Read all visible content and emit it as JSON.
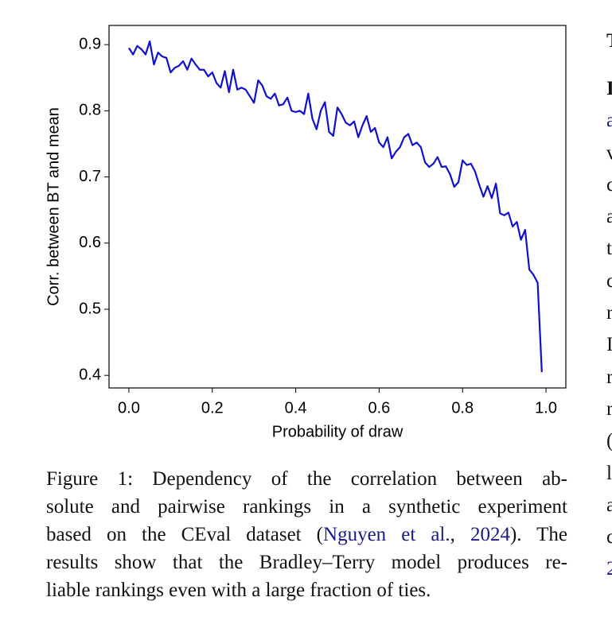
{
  "chart_data": {
    "type": "line",
    "xlabel": "Probability of draw",
    "ylabel": "Corr. between BT and mean",
    "x": [
      0.0,
      0.01,
      0.02,
      0.03,
      0.04,
      0.05,
      0.06,
      0.07,
      0.08,
      0.09,
      0.1,
      0.11,
      0.12,
      0.13,
      0.14,
      0.15,
      0.16,
      0.17,
      0.18,
      0.19,
      0.2,
      0.21,
      0.22,
      0.23,
      0.24,
      0.25,
      0.26,
      0.27,
      0.28,
      0.29,
      0.3,
      0.31,
      0.32,
      0.33,
      0.34,
      0.35,
      0.36,
      0.37,
      0.38,
      0.39,
      0.4,
      0.41,
      0.42,
      0.43,
      0.44,
      0.45,
      0.46,
      0.47,
      0.48,
      0.49,
      0.5,
      0.51,
      0.52,
      0.53,
      0.54,
      0.55,
      0.56,
      0.57,
      0.58,
      0.59,
      0.6,
      0.61,
      0.62,
      0.63,
      0.64,
      0.65,
      0.66,
      0.67,
      0.68,
      0.69,
      0.7,
      0.71,
      0.72,
      0.73,
      0.74,
      0.75,
      0.76,
      0.77,
      0.78,
      0.79,
      0.8,
      0.81,
      0.82,
      0.83,
      0.84,
      0.85,
      0.86,
      0.87,
      0.88,
      0.89,
      0.9,
      0.91,
      0.92,
      0.93,
      0.94,
      0.95,
      0.96,
      0.97,
      0.98,
      0.99
    ],
    "series": [
      {
        "color": "#1010d0",
        "values": [
          0.895,
          0.885,
          0.898,
          0.893,
          0.885,
          0.905,
          0.87,
          0.888,
          0.882,
          0.88,
          0.858,
          0.865,
          0.868,
          0.875,
          0.862,
          0.879,
          0.87,
          0.862,
          0.862,
          0.852,
          0.858,
          0.842,
          0.835,
          0.86,
          0.828,
          0.862,
          0.832,
          0.835,
          0.832,
          0.822,
          0.812,
          0.846,
          0.838,
          0.822,
          0.818,
          0.826,
          0.808,
          0.81,
          0.82,
          0.8,
          0.798,
          0.8,
          0.795,
          0.826,
          0.788,
          0.772,
          0.8,
          0.813,
          0.768,
          0.762,
          0.805,
          0.795,
          0.782,
          0.778,
          0.784,
          0.76,
          0.778,
          0.792,
          0.768,
          0.774,
          0.752,
          0.745,
          0.76,
          0.728,
          0.738,
          0.745,
          0.76,
          0.765,
          0.748,
          0.752,
          0.745,
          0.722,
          0.715,
          0.72,
          0.73,
          0.715,
          0.716,
          0.704,
          0.685,
          0.692,
          0.725,
          0.718,
          0.72,
          0.708,
          0.688,
          0.67,
          0.686,
          0.668,
          0.69,
          0.645,
          0.642,
          0.646,
          0.625,
          0.632,
          0.605,
          0.62,
          0.56,
          0.552,
          0.54,
          0.405
        ]
      }
    ],
    "xlim": [
      -0.0476,
      1.0476
    ],
    "ylim": [
      0.381,
      0.929
    ],
    "xticks": [
      {
        "value": 0,
        "label": "0.0"
      },
      0.2,
      0.4,
      0.6,
      0.8,
      {
        "value": 1,
        "label": "1.0"
      }
    ],
    "yticks": [
      0.4,
      0.5,
      0.6,
      0.7,
      0.8,
      0.9
    ]
  },
  "caption": {
    "lines": [
      "Figure 1: Dependency of the correlation between ab-",
      "solute and pairwise rankings in a synthetic experiment",
      [
        "based on the CEval dataset (",
        "Nguyen et al.",
        ", ",
        "2024",
        "). The"
      ],
      "results show that the Bradley–Terry model produces re-",
      "liable rankings even with a large fraction of ties."
    ]
  },
  "side_text": [
    "T",
    "I",
    "a",
    "v",
    "c",
    "a",
    "t",
    "c",
    "r",
    "I",
    "r",
    "r",
    "(",
    "l",
    "a",
    "c",
    "2"
  ]
}
